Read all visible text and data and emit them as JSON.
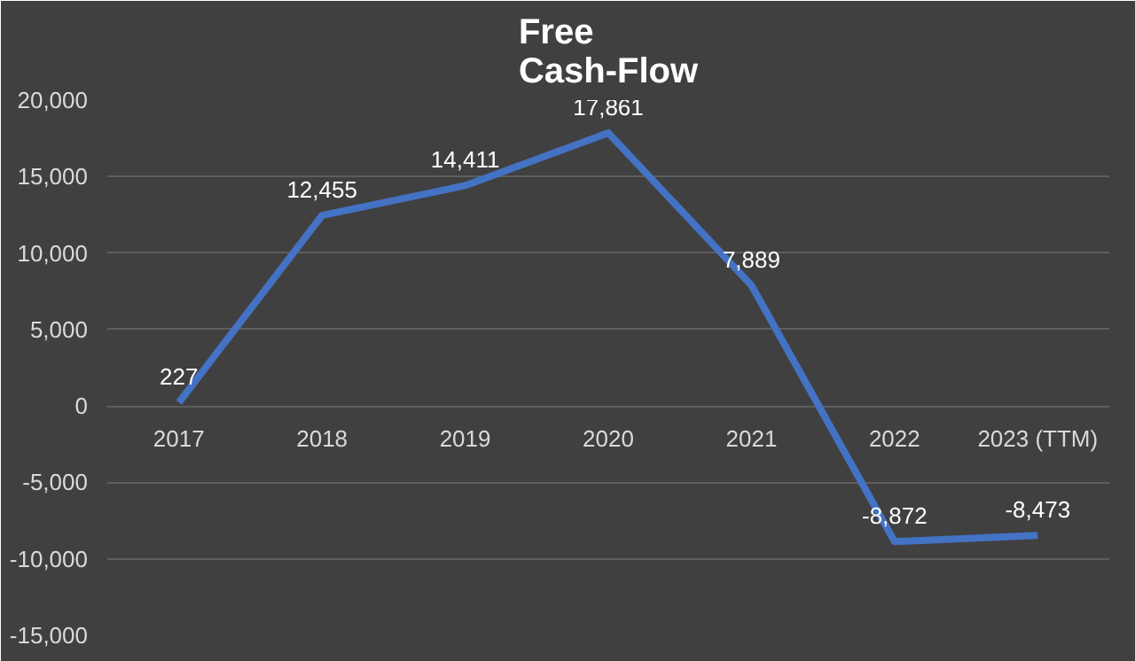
{
  "chart_data": {
    "type": "line",
    "title": "Free\nCash-Flow",
    "categories": [
      "2017",
      "2018",
      "2019",
      "2020",
      "2021",
      "2022",
      "2023 (TTM)"
    ],
    "series": [
      {
        "color": "#4472c4",
        "values": [
          227,
          12455,
          14411,
          17861,
          7889,
          -8872,
          -8473
        ],
        "value_labels": [
          "227",
          "12,455",
          "14,411",
          "17,861",
          "7,889",
          "-8,872",
          "-8,473"
        ]
      }
    ],
    "ylim": [
      -15000,
      20000
    ],
    "yticks": [
      {
        "value": -15000,
        "label": "-15,000"
      },
      {
        "value": -10000,
        "label": "-10,000"
      },
      {
        "value": -5000,
        "label": "-5,000"
      },
      0,
      {
        "value": 5000,
        "label": "5,000"
      },
      {
        "value": 10000,
        "label": "10,000"
      },
      {
        "value": 15000,
        "label": "15,000"
      },
      {
        "value": 20000,
        "label": "20,000"
      }
    ],
    "grid": "y",
    "marker": "none",
    "line_style": "solid"
  }
}
